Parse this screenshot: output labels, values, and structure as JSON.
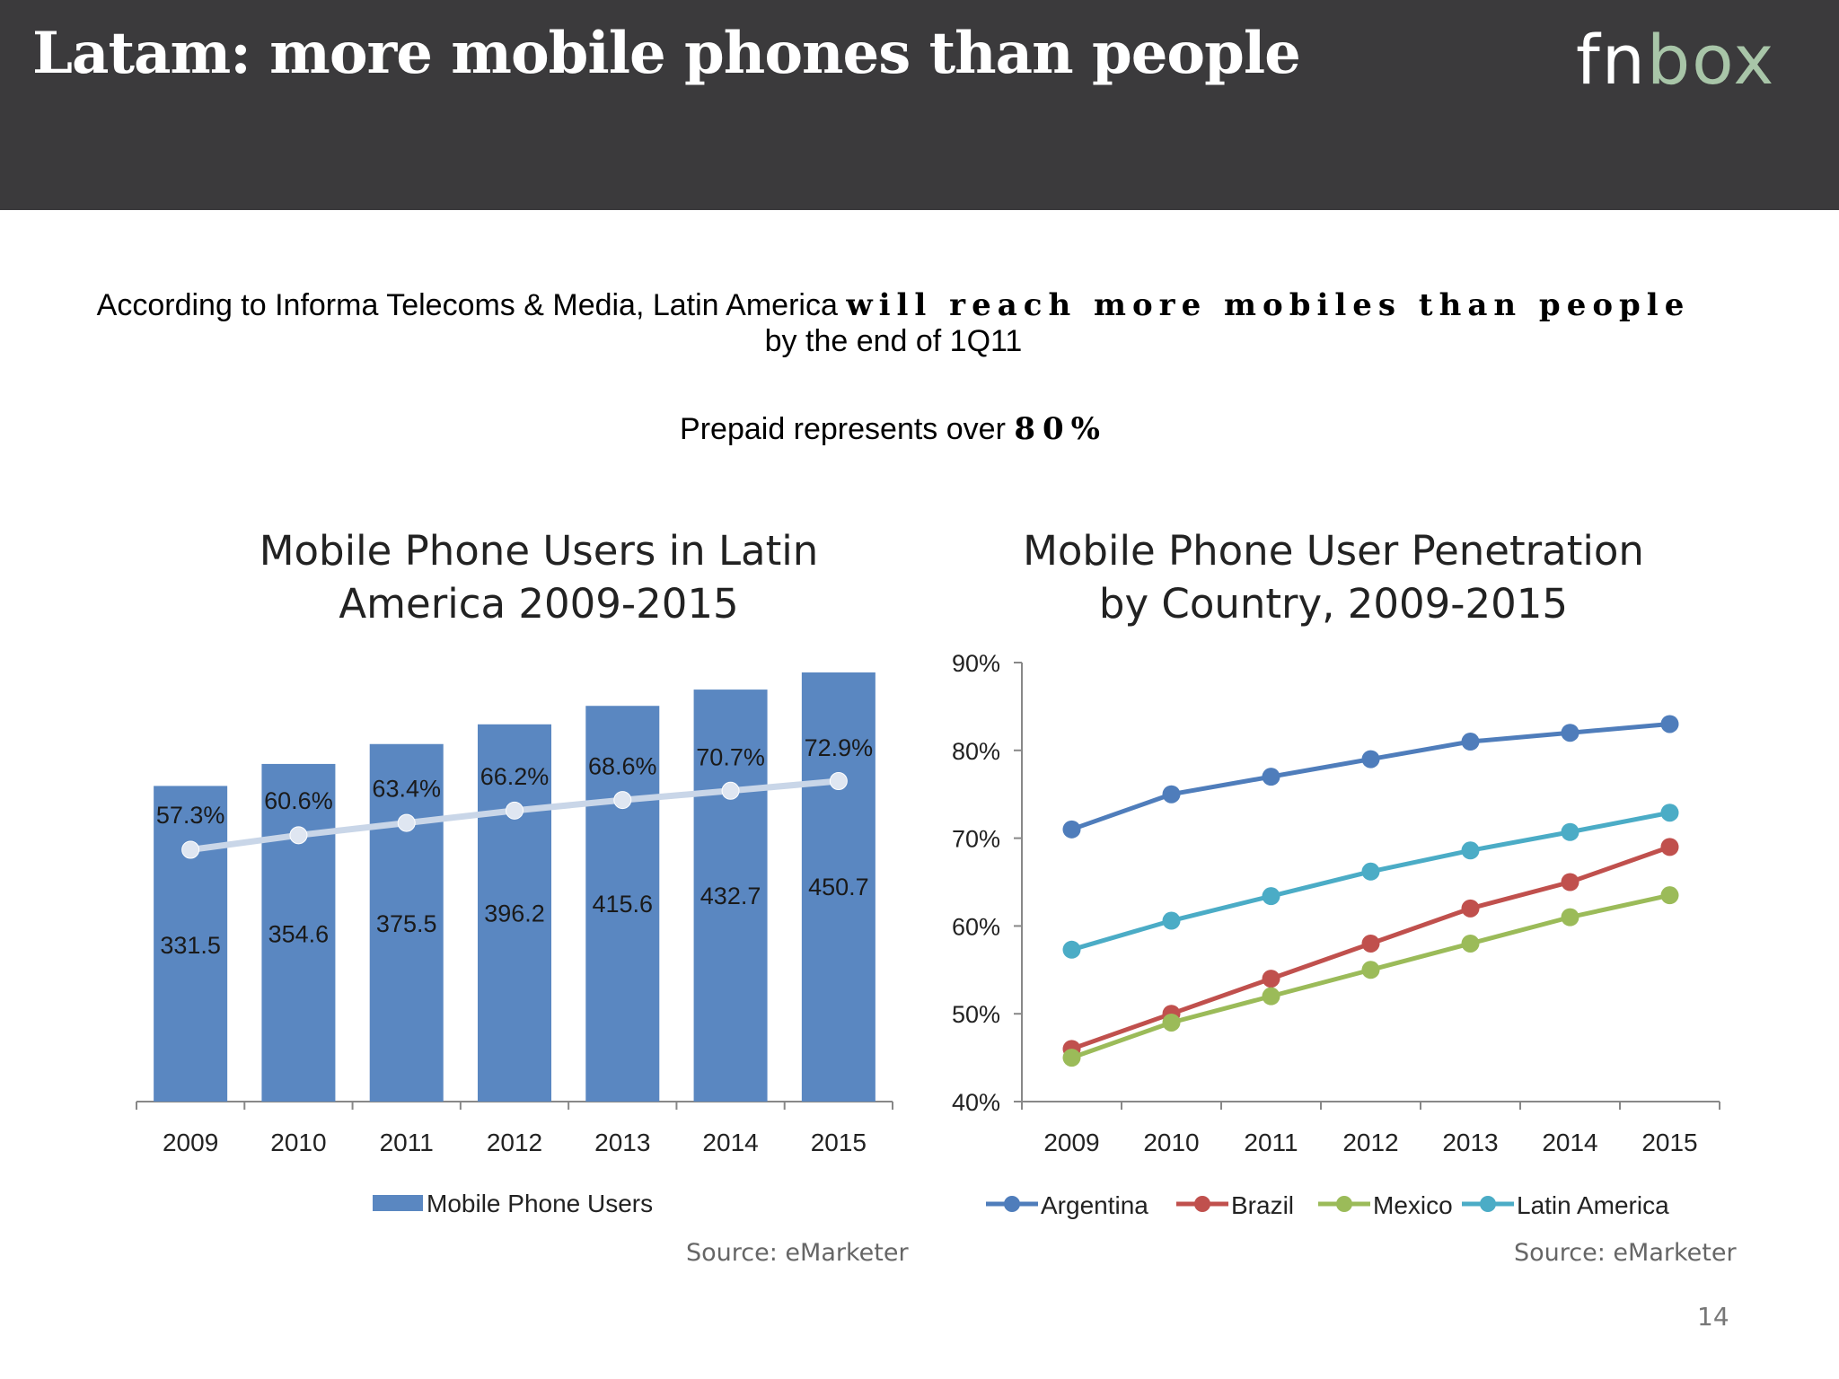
{
  "slide": {
    "title": "Latam: more mobile phones than people",
    "logo": {
      "part1": "fn",
      "part2": "box"
    },
    "intro_prefix": "According to Informa Telecoms & Media, Latin America ",
    "intro_bold": "will reach more mobiles than people",
    "intro_suffix": "by the end of 1Q11",
    "prepaid_prefix": "Prepaid represents over ",
    "prepaid_bold": "80%",
    "page_number": "14",
    "colors": {
      "header_bg": "#3b3a3c",
      "bar": "#5a87c1"
    }
  },
  "chart_data": [
    {
      "type": "bar",
      "title_line1": "Mobile Phone Users in Latin",
      "title_line2": "America 2009-2015",
      "categories": [
        "2009",
        "2010",
        "2011",
        "2012",
        "2013",
        "2014",
        "2015"
      ],
      "series": [
        {
          "name": "Mobile Phone Users",
          "values": [
            331.5,
            354.6,
            375.5,
            396.2,
            415.6,
            432.7,
            450.7
          ],
          "color": "#5a87c1"
        }
      ],
      "overlay_line": {
        "values": [
          57.3,
          60.6,
          63.4,
          66.2,
          68.6,
          70.7,
          72.9
        ],
        "labels": [
          "57.3%",
          "60.6%",
          "63.4%",
          "66.2%",
          "68.6%",
          "70.7%",
          "72.9%"
        ],
        "color": "#c9d6e8"
      },
      "value_labels": [
        "331.5",
        "354.6",
        "375.5",
        "396.2",
        "415.6",
        "432.7",
        "450.7"
      ],
      "legend": "Mobile Phone Users",
      "legend_position": "bottom",
      "source": "Source: eMarketer",
      "xlabel": "",
      "ylabel": ""
    },
    {
      "type": "line",
      "title_line1": "Mobile Phone User Penetration",
      "title_line2": "by Country, 2009-2015",
      "x": [
        "2009",
        "2010",
        "2011",
        "2012",
        "2013",
        "2014",
        "2015"
      ],
      "y_ticks": [
        "40%",
        "50%",
        "60%",
        "70%",
        "80%",
        "90%"
      ],
      "ylim": [
        40,
        90
      ],
      "series": [
        {
          "name": "Argentina",
          "values": [
            71,
            75,
            77,
            79,
            81,
            82,
            83
          ],
          "color": "#4f7dbb"
        },
        {
          "name": "Brazil",
          "values": [
            46,
            50,
            54,
            58,
            62,
            65,
            69
          ],
          "color": "#c0504d"
        },
        {
          "name": "Mexico",
          "values": [
            45,
            49,
            52,
            55,
            58,
            61,
            63.5
          ],
          "color": "#9bbb59"
        },
        {
          "name": "Latin America",
          "values": [
            57.3,
            60.6,
            63.4,
            66.2,
            68.6,
            70.7,
            72.9
          ],
          "color": "#4bacc6"
        }
      ],
      "legend_position": "bottom",
      "source": "Source: eMarketer",
      "xlabel": "",
      "ylabel": ""
    }
  ]
}
